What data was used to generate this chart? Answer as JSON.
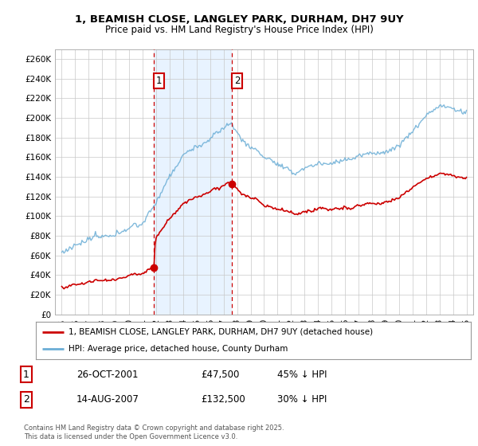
{
  "title_line1": "1, BEAMISH CLOSE, LANGLEY PARK, DURHAM, DH7 9UY",
  "title_line2": "Price paid vs. HM Land Registry's House Price Index (HPI)",
  "ylim": [
    0,
    270000
  ],
  "yticks": [
    0,
    20000,
    40000,
    60000,
    80000,
    100000,
    120000,
    140000,
    160000,
    180000,
    200000,
    220000,
    240000,
    260000
  ],
  "ytick_labels": [
    "£0",
    "£20K",
    "£40K",
    "£60K",
    "£80K",
    "£100K",
    "£120K",
    "£140K",
    "£160K",
    "£180K",
    "£200K",
    "£220K",
    "£240K",
    "£260K"
  ],
  "hpi_color": "#6baed6",
  "price_color": "#cc0000",
  "marker1_year": 2001.82,
  "marker1_price": 47500,
  "marker2_year": 2007.62,
  "marker2_price": 132500,
  "legend_label1": "1, BEAMISH CLOSE, LANGLEY PARK, DURHAM, DH7 9UY (detached house)",
  "legend_label2": "HPI: Average price, detached house, County Durham",
  "table_row1": [
    "1",
    "26-OCT-2001",
    "£47,500",
    "45% ↓ HPI"
  ],
  "table_row2": [
    "2",
    "14-AUG-2007",
    "£132,500",
    "30% ↓ HPI"
  ],
  "footnote": "Contains HM Land Registry data © Crown copyright and database right 2025.\nThis data is licensed under the Open Government Licence v3.0.",
  "bg_color": "#ffffff",
  "grid_color": "#c8c8c8",
  "shade_color": "#ddeeff"
}
